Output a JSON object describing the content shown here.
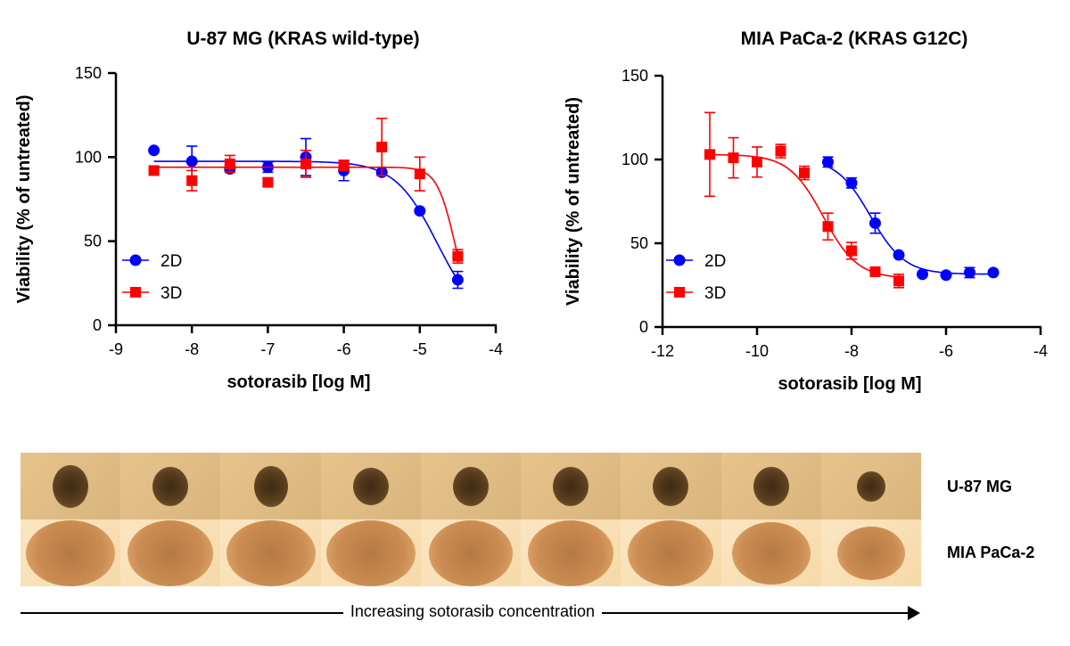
{
  "chart_data": [
    {
      "type": "line",
      "title": "U-87 MG (KRAS wild-type)",
      "xlabel": "sotorasib [log M]",
      "ylabel": "Viability (% of untreated)",
      "xlim": [
        -9,
        -4
      ],
      "ylim": [
        0,
        150
      ],
      "xticks": [
        "-9",
        "-8",
        "-7",
        "-6",
        "-5",
        "-4"
      ],
      "yticks": [
        "0",
        "50",
        "100",
        "150"
      ],
      "legend_position": "bottom-left",
      "series": [
        {
          "name": "2D",
          "color": "#0000ff",
          "marker": "circle",
          "x": [
            -8.5,
            -8,
            -7.5,
            -7,
            -6.5,
            -6,
            -5.5,
            -5,
            -4.5
          ],
          "y": [
            104,
            97.5,
            93,
            94,
            100,
            92,
            91,
            68,
            27
          ],
          "err": [
            0,
            9,
            2,
            3,
            11,
            6,
            0,
            0,
            5
          ]
        },
        {
          "name": "3D",
          "color": "#ff0000",
          "marker": "square",
          "x": [
            -8.5,
            -8,
            -7.5,
            -7,
            -6.5,
            -6,
            -5.5,
            -5,
            -4.5
          ],
          "y": [
            92,
            86,
            96,
            85,
            96,
            95,
            106,
            90,
            41
          ],
          "err": [
            0,
            6,
            5,
            0,
            8,
            3,
            17,
            10,
            4
          ]
        }
      ]
    },
    {
      "type": "line",
      "title": "MIA PaCa-2 (KRAS G12C)",
      "xlabel": "sotorasib [log M]",
      "ylabel": "Viability (% of untreated)",
      "xlim": [
        -12,
        -4
      ],
      "ylim": [
        0,
        150
      ],
      "xticks": [
        "-12",
        "-10",
        "-8",
        "-6",
        "-4"
      ],
      "yticks": [
        "0",
        "50",
        "100",
        "150"
      ],
      "legend_position": "bottom-left",
      "series": [
        {
          "name": "2D",
          "color": "#0000ff",
          "marker": "circle",
          "x": [
            -8.5,
            -8,
            -7.5,
            -7,
            -6.5,
            -6,
            -5.5,
            -5
          ],
          "y": [
            98.5,
            86,
            62,
            43,
            31.5,
            31,
            32.5,
            32.5
          ],
          "err": [
            3,
            3,
            6,
            0,
            0,
            0,
            3,
            0
          ]
        },
        {
          "name": "3D",
          "color": "#ff0000",
          "marker": "square",
          "x": [
            -11,
            -10.5,
            -10,
            -9.5,
            -9,
            -8.5,
            -8,
            -7.5,
            -7
          ],
          "y": [
            103,
            101,
            98.5,
            105,
            92,
            60,
            45.5,
            33,
            27.5
          ],
          "err": [
            25,
            12,
            9,
            4,
            4,
            8,
            5,
            0,
            4
          ]
        }
      ]
    }
  ],
  "images": {
    "rows": [
      "U-87 MG",
      "MIA PaCa-2"
    ],
    "columns": 9,
    "arrow_label": "Increasing sotorasib concentration"
  }
}
